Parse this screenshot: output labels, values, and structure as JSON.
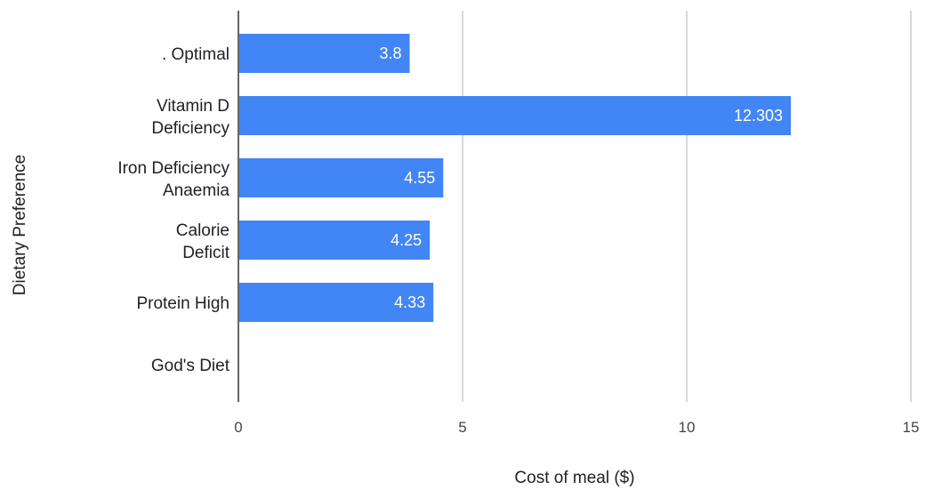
{
  "chart_data": {
    "type": "bar",
    "orientation": "horizontal",
    "categories": [
      ". Optimal",
      "Vitamin D Deficiency",
      "Iron Deficiency Anaemia",
      "Calorie Deficit",
      "Protein High",
      "God's Diet"
    ],
    "values": [
      3.8,
      12.303,
      4.55,
      4.25,
      4.33,
      null
    ],
    "data_labels": [
      "3.8",
      "12.303",
      "4.55",
      "4.25",
      "4.33",
      ""
    ],
    "xlabel": "Cost of meal ($)",
    "ylabel": "Dietary Preference",
    "xlim": [
      0,
      15
    ],
    "xticks": [
      "0",
      "5",
      "10",
      "15"
    ],
    "xtick_values": [
      0,
      5,
      10,
      15
    ],
    "grid": "vertical",
    "legend": "none",
    "bar_color": "#4285f4"
  }
}
